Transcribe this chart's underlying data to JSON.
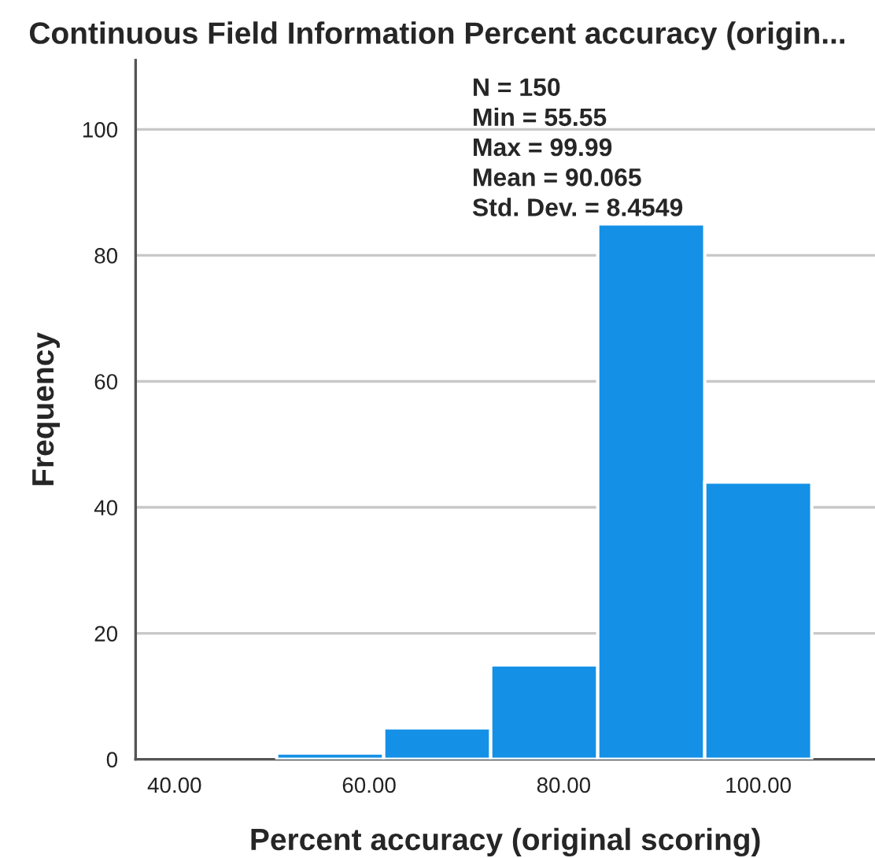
{
  "chart_data": {
    "type": "histogram",
    "title": "Continuous Field Information Percent accuracy (origin...",
    "xlabel": "Percent accuracy (original scoring)",
    "ylabel": "Frequency",
    "bins": [
      50.5,
      61.5,
      72.5,
      83.5,
      94.5,
      105.5
    ],
    "values": [
      1,
      5,
      15,
      85,
      44
    ],
    "color": "#1490e6",
    "xlim": [
      36,
      112
    ],
    "ylim": [
      0,
      111
    ],
    "xticks": [
      {
        "value": 40,
        "label": "40.00"
      },
      {
        "value": 60,
        "label": "60.00"
      },
      {
        "value": 80,
        "label": "80.00"
      },
      {
        "value": 100,
        "label": "100.00"
      }
    ],
    "yticks": [
      0,
      20,
      40,
      60,
      80,
      100
    ],
    "grid": "y",
    "annotations": [
      "N = 150",
      "Min = 55.55",
      "Max = 99.99",
      "Mean = 90.065",
      "Std. Dev. = 8.4549"
    ]
  }
}
